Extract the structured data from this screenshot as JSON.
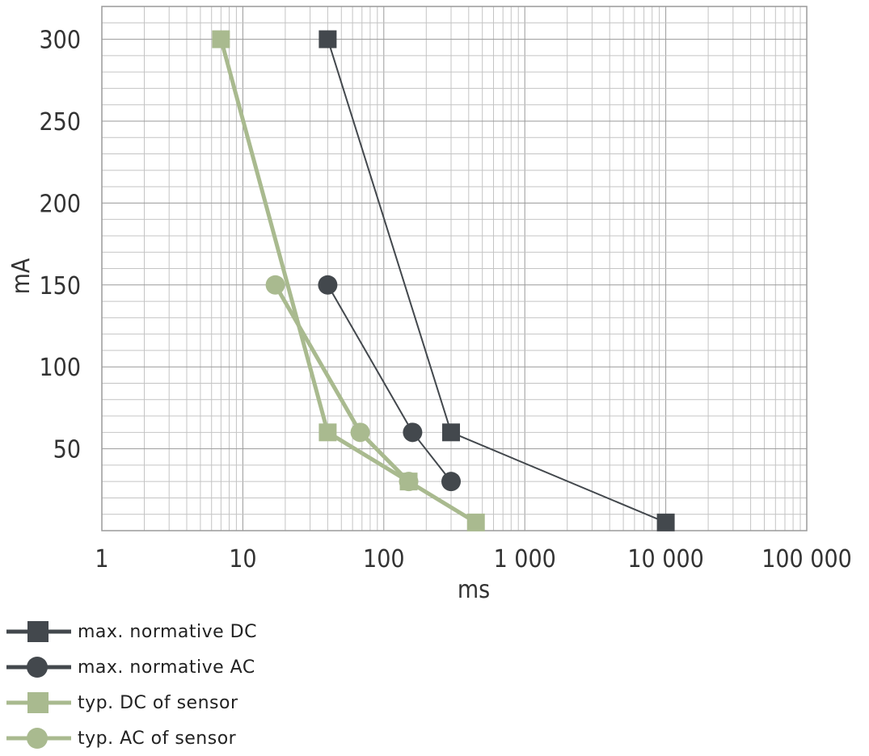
{
  "chart_data": {
    "type": "line",
    "xlabel": "ms",
    "ylabel": "mA",
    "x_scale": "log",
    "xlim": [
      1,
      100000
    ],
    "ylim": [
      0,
      320
    ],
    "x_ticks": [
      {
        "value": 1,
        "label": "1"
      },
      {
        "value": 10,
        "label": "10"
      },
      {
        "value": 100,
        "label": "100"
      },
      {
        "value": 1000,
        "label": "1 000"
      },
      {
        "value": 10000,
        "label": "10 000"
      },
      {
        "value": 100000,
        "label": "100 000"
      }
    ],
    "y_ticks": [
      {
        "value": 50,
        "label": "50"
      },
      {
        "value": 100,
        "label": "100"
      },
      {
        "value": 150,
        "label": "150"
      },
      {
        "value": 200,
        "label": "200"
      },
      {
        "value": 250,
        "label": "250"
      },
      {
        "value": 300,
        "label": "300"
      }
    ],
    "grid": true,
    "legend_position": "bottom-left",
    "series": [
      {
        "name": "max. normative DC",
        "color": "#43484d",
        "marker": "square",
        "line_width": 2,
        "x": [
          40,
          300,
          10000
        ],
        "y": [
          300,
          60,
          5
        ]
      },
      {
        "name": "max. normative AC",
        "color": "#43484d",
        "marker": "circle",
        "line_width": 2,
        "x": [
          40,
          160,
          300
        ],
        "y": [
          150,
          60,
          30
        ]
      },
      {
        "name": "typ. DC of sensor",
        "color": "#a9ba8f",
        "marker": "square",
        "line_width": 5,
        "x": [
          7,
          40,
          150,
          450
        ],
        "y": [
          300,
          60,
          30,
          5
        ]
      },
      {
        "name": "typ. AC of sensor",
        "color": "#a9ba8f",
        "marker": "circle",
        "line_width": 5,
        "x": [
          17,
          68,
          150
        ],
        "y": [
          150,
          60,
          30
        ]
      }
    ]
  }
}
